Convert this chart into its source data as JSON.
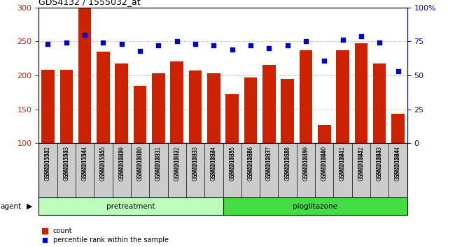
{
  "title": "GDS4132 / 1555032_at",
  "samples": [
    "GSM201542",
    "GSM201543",
    "GSM201544",
    "GSM201545",
    "GSM201829",
    "GSM201830",
    "GSM201831",
    "GSM201832",
    "GSM201833",
    "GSM201834",
    "GSM201835",
    "GSM201836",
    "GSM201837",
    "GSM201838",
    "GSM201839",
    "GSM201840",
    "GSM201841",
    "GSM201842",
    "GSM201843",
    "GSM201844"
  ],
  "counts": [
    208,
    208,
    300,
    235,
    217,
    185,
    203,
    221,
    207,
    203,
    172,
    197,
    215,
    195,
    237,
    127,
    237,
    247,
    217,
    143
  ],
  "percentiles": [
    73,
    74,
    80,
    74,
    73,
    68,
    72,
    75,
    73,
    72,
    69,
    72,
    70,
    72,
    75,
    61,
    76,
    79,
    74,
    53
  ],
  "pretreatment_count": 10,
  "pioglitazone_count": 10,
  "ylim_left": [
    100,
    300
  ],
  "ylim_right": [
    0,
    100
  ],
  "yticks_left": [
    100,
    150,
    200,
    250,
    300
  ],
  "yticks_right": [
    0,
    25,
    50,
    75,
    100
  ],
  "bar_color": "#cc2200",
  "dot_color": "#0000cc",
  "pretreatment_color": "#bbffbb",
  "pioglitazone_color": "#44dd44",
  "xlabel_bg_color": "#cccccc",
  "grid_color": "#999999",
  "plot_bg_color": "#ffffff"
}
